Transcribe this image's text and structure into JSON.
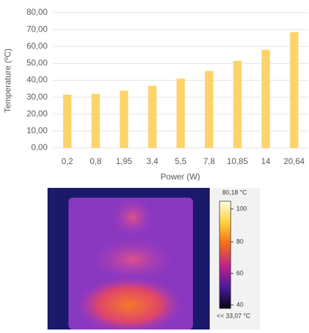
{
  "chart_data": {
    "type": "bar",
    "x_label": "Power (W)",
    "y_label": "Temperature (ºC)",
    "categories": [
      "0,2",
      "0,8",
      "1,95",
      "3,4",
      "5,5",
      "7,8",
      "10,85",
      "14",
      "20,64"
    ],
    "values": [
      31.5,
      32,
      33.8,
      36.8,
      41,
      45.5,
      51.5,
      58,
      68.5
    ],
    "color": "#fdd46b",
    "ylim": [
      0,
      80
    ],
    "yticks": [
      {
        "value": 0,
        "label": "0,00"
      },
      {
        "value": 10,
        "label": "10,00"
      },
      {
        "value": 20,
        "label": "20,00"
      },
      {
        "value": 30,
        "label": "30,00"
      },
      {
        "value": 40,
        "label": "40,00"
      },
      {
        "value": 50,
        "label": "50,00"
      },
      {
        "value": 60,
        "label": "60,00"
      },
      {
        "value": 70,
        "label": "70,00"
      },
      {
        "value": 80,
        "label": "80,00"
      }
    ],
    "grid": true
  },
  "thermal": {
    "max": "80,18 °C",
    "scale_ticks": [
      "100",
      "80",
      "60",
      "40"
    ],
    "min": "<< 33,07 °C"
  }
}
